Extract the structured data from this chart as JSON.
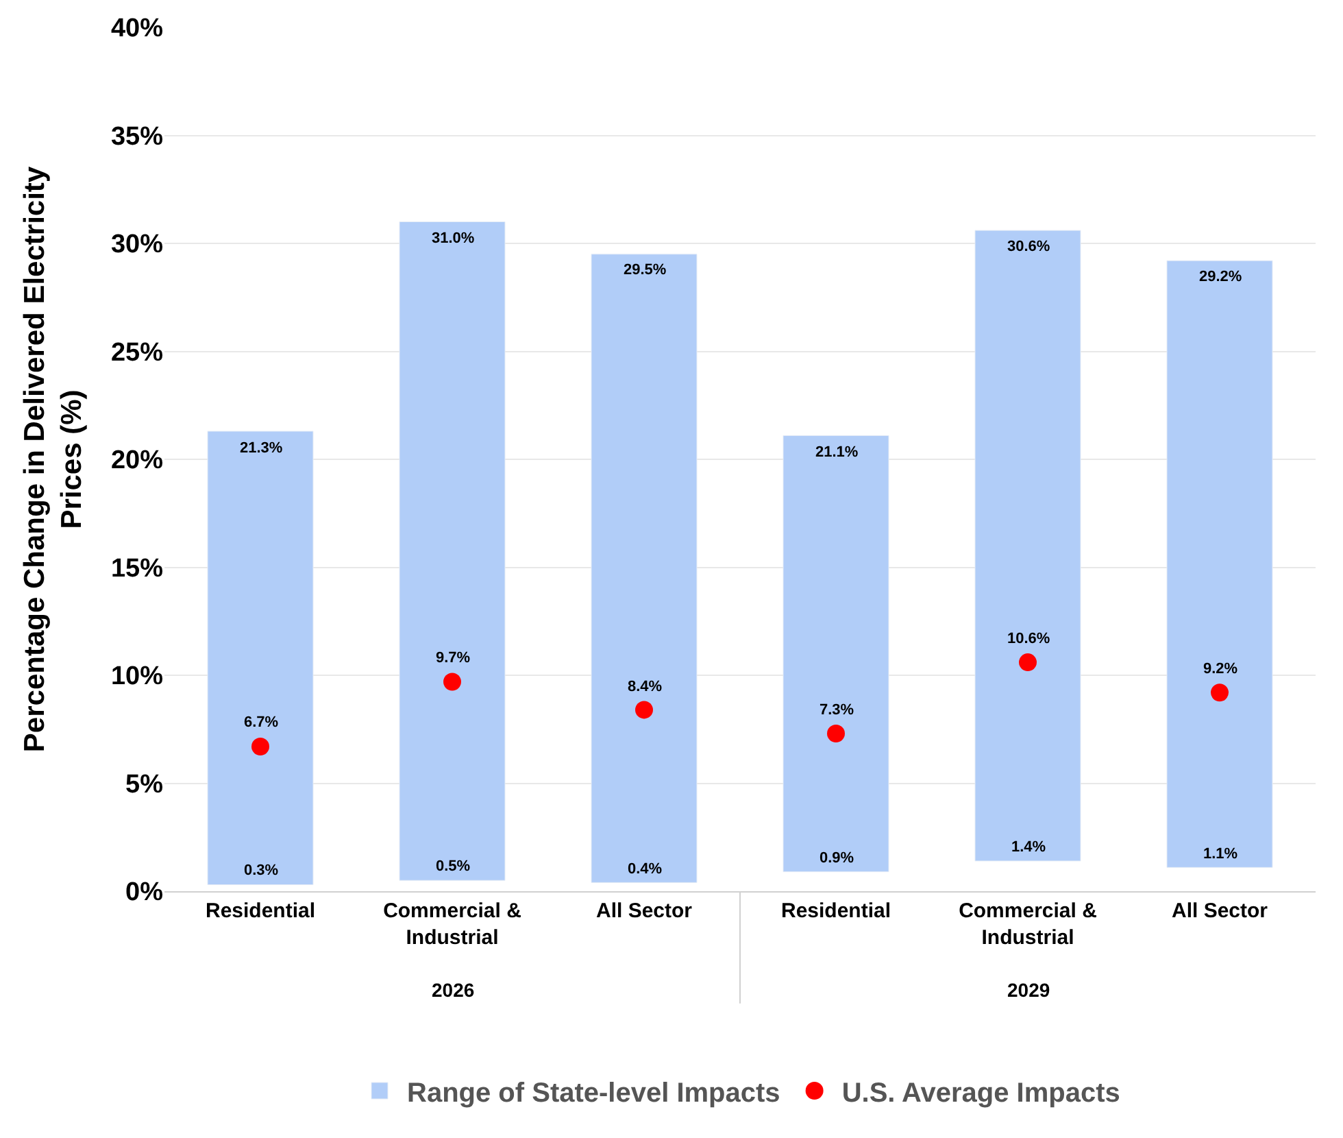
{
  "chart_data": {
    "type": "bar",
    "ylabel": "Percentage Change in Delivered Electricity Prices (%)",
    "categories": [
      "Residential",
      "Commercial & Industrial",
      "All Sector",
      "Residential",
      "Commercial & Industrial",
      "All Sector"
    ],
    "series": [
      {
        "name": "Range of State-level Impacts",
        "color": "#b1cdf8",
        "base": [
          0.3,
          0.5,
          0.4,
          0.9,
          1.4,
          1.1
        ],
        "values": [
          21.0,
          30.5,
          29.1,
          20.2,
          29.2,
          28.1
        ],
        "value_labels": [
          "21.3%",
          "31.0%",
          "29.5%",
          "21.1%",
          "30.6%",
          "29.2%"
        ]
      },
      {
        "type": "scatter",
        "name": "U.S. Average Impacts",
        "color": "#ff0000",
        "values": [
          6.7,
          9.7,
          8.4,
          7.3,
          10.6,
          9.2
        ],
        "value_labels": [
          "6.7%",
          "9.7%",
          "8.4%",
          "7.3%",
          "10.6%",
          "9.2%"
        ]
      }
    ],
    "annotations": [
      "2026",
      "2029",
      "0.3%",
      "0.5%",
      "0.4%",
      "0.9%",
      "1.4%",
      "1.1%"
    ],
    "ylim": [
      0,
      40
    ],
    "yticks": [
      {
        "value": 0,
        "label": "0%"
      },
      {
        "value": 5,
        "label": "5%"
      },
      {
        "value": 10,
        "label": "10%"
      },
      {
        "value": 15,
        "label": "15%"
      },
      {
        "value": 20,
        "label": "20%"
      },
      {
        "value": 25,
        "label": "25%"
      },
      {
        "value": 30,
        "label": "30%"
      },
      {
        "value": 35,
        "label": "35%"
      },
      {
        "value": 40,
        "label": "40%"
      }
    ],
    "grid": "y",
    "legend": "bottom",
    "marker": "circle"
  }
}
